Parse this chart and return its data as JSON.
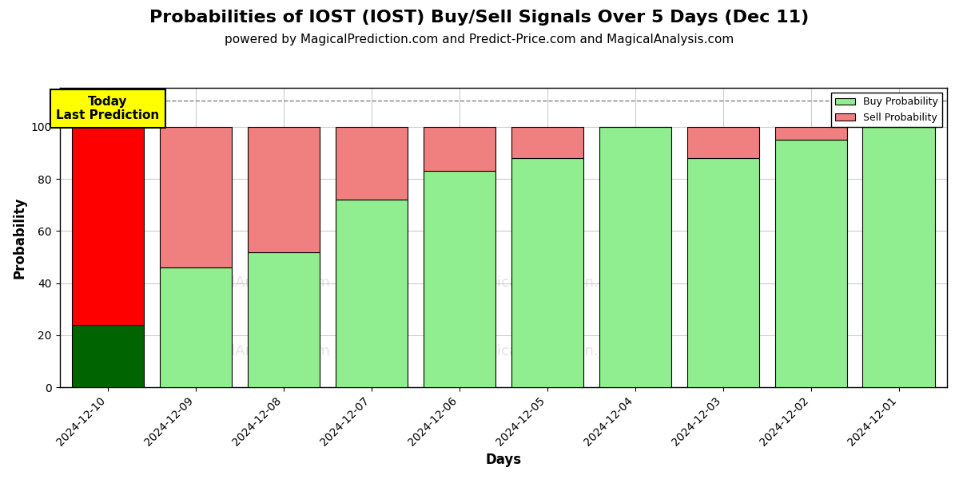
{
  "title": "Probabilities of IOST (IOST) Buy/Sell Signals Over 5 Days (Dec 11)",
  "subtitle": "powered by MagicalPrediction.com and Predict-Price.com and MagicalAnalysis.com",
  "xlabel": "Days",
  "ylabel": "Probability",
  "categories": [
    "2024-12-10",
    "2024-12-09",
    "2024-12-08",
    "2024-12-07",
    "2024-12-06",
    "2024-12-05",
    "2024-12-04",
    "2024-12-03",
    "2024-12-02",
    "2024-12-01"
  ],
  "buy_values": [
    24,
    46,
    52,
    72,
    83,
    88,
    100,
    88,
    95,
    100
  ],
  "sell_values": [
    76,
    54,
    48,
    28,
    17,
    12,
    0,
    12,
    5,
    0
  ],
  "buy_colors": [
    "#006400",
    "#90EE90",
    "#90EE90",
    "#90EE90",
    "#90EE90",
    "#90EE90",
    "#90EE90",
    "#90EE90",
    "#90EE90",
    "#90EE90"
  ],
  "sell_colors": [
    "#FF0000",
    "#F08080",
    "#F08080",
    "#F08080",
    "#F08080",
    "#F08080",
    "#F08080",
    "#F08080",
    "#F08080",
    "#F08080"
  ],
  "legend_buy_color": "#90EE90",
  "legend_sell_color": "#F08080",
  "ylim": [
    0,
    115
  ],
  "dashed_line_y": 110,
  "today_box_text": "Today\nLast Prediction",
  "title_fontsize": 16,
  "subtitle_fontsize": 11,
  "background_color": "#ffffff",
  "grid_color": "#cccccc",
  "bar_width": 0.82
}
